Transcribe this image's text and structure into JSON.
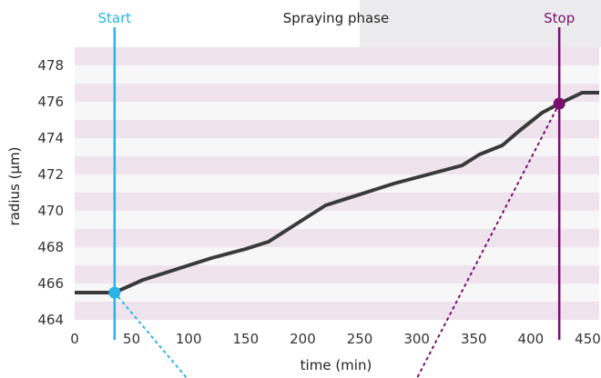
{
  "chart_data": {
    "type": "line",
    "title": "",
    "xlabel": "time (min)",
    "ylabel": "radius (µm)",
    "xlim": [
      0,
      460
    ],
    "ylim": [
      464,
      479
    ],
    "x_ticks": [
      0,
      50,
      100,
      150,
      200,
      250,
      300,
      350,
      400,
      450
    ],
    "y_ticks": [
      464,
      466,
      468,
      470,
      472,
      474,
      476,
      478
    ],
    "grid": "alternating horizontal bands",
    "series": [
      {
        "name": "",
        "color": "#3a3a3a",
        "points": [
          [
            0,
            465.5
          ],
          [
            35,
            465.5
          ],
          [
            60,
            466.2
          ],
          [
            90,
            466.8
          ],
          [
            120,
            467.4
          ],
          [
            150,
            467.9
          ],
          [
            170,
            468.3
          ],
          [
            200,
            469.5
          ],
          [
            220,
            470.3
          ],
          [
            250,
            470.9
          ],
          [
            280,
            471.5
          ],
          [
            310,
            472.0
          ],
          [
            340,
            472.5
          ],
          [
            355,
            473.1
          ],
          [
            375,
            473.6
          ],
          [
            390,
            474.4
          ],
          [
            410,
            475.4
          ],
          [
            425,
            475.9
          ],
          [
            445,
            476.5
          ],
          [
            460,
            476.5
          ]
        ]
      }
    ],
    "markers": [
      {
        "label": "Start",
        "x": 35,
        "y": 465.5,
        "color": "#2ab3e6"
      },
      {
        "label": "Stop",
        "x": 425,
        "y": 475.9,
        "color": "#7a0f6e"
      }
    ],
    "phase_label": "Spraying phase",
    "band_color_shaded": "#efe3ed",
    "band_color_light": "#f7f7f7"
  }
}
